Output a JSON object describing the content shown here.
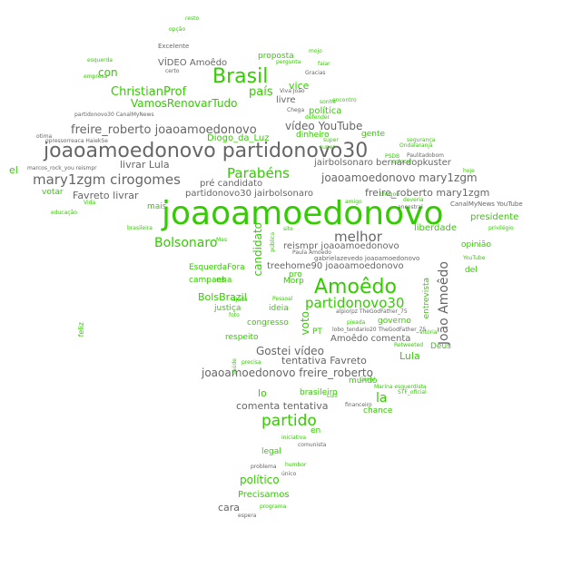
{
  "colors": {
    "green": "#33cc00",
    "gray": "#666666",
    "light_green": "#66dd33",
    "light_gray": "#999999"
  },
  "words": [
    "joaoamoedonovo",
    "joaoamoedonovo partidonovo30",
    "Brasil",
    "Amoêdo",
    "partido",
    "mary1zgm cirogomes",
    "freire_roberto joaoamoedonovo",
    "partidonovo30",
    "Parabéns",
    "melhor",
    "Bolsonaro",
    "João Amoêdo",
    "ChristianProf",
    "VamosRenovarTudo",
    "país",
    "vídeo YouTube",
    "joaoamoedonovo mary1zgm",
    "jairbolsonaro bernardopkuster",
    "freire_roberto mary1zgm",
    "joaoamoedonovo freire_roberto",
    "Gostei vídeo",
    "tentativa Favreto",
    "comenta tentativa",
    "reismpr joaoamoedonovo",
    "treehome90 joaoamoedonovo",
    "Amoêdo comenta",
    "livrar Lula",
    "Favreto livrar",
    "pré candidato",
    "partidonovo30 jairbolsonaro",
    "Diogo_da_Luz",
    "político",
    "Precisamos",
    "VÍDEO Amoêdo",
    "proposta",
    "con",
    "vice",
    "política",
    "livre",
    "dinheiro",
    "gente",
    "candidato",
    "voto",
    "presidente",
    "liberdade",
    "Lula",
    "la",
    "lo",
    "el",
    "mais",
    "EsquerdaFora",
    "BolsBrazil",
    "campanha",
    "justiça",
    "ideia",
    "congresso",
    "respeito",
    "governo",
    "brasileiro",
    "mundo",
    "chance",
    "legal",
    "cara",
    "entrevista",
    "Deus",
    "opinião",
    "votar",
    "Morp",
    "PT",
    "pro",
    "es",
    "en",
    "del",
    "feliz",
    "Excelente",
    "resto",
    "opção",
    "esquerda",
    "empresa",
    "certo",
    "otima",
    "educação",
    "saúde",
    "Vitória",
    "iniciativa",
    "humbor",
    "problema",
    "único",
    "espera",
    "programa",
    "marcos_rock_you reismpr",
    "partidonovo30 CanalMyNews",
    "opressorreaca HaiekSe",
    "Paulitadobom",
    "YouTube",
    "privilégio",
    "segurança",
    "Chega",
    "defender",
    "sonhe",
    "Pessoal",
    "foto",
    "pieada",
    "precisa",
    "alpiorpz TheGodFather_75",
    "Marina esquerdista",
    "STF_oficial",
    "lobo_tendario20 TheGodFather_75",
    "brasileira",
    "Gracias",
    "faiar",
    "pergunta",
    "mojo",
    "Viva João",
    "super",
    "encontro",
    "Ondalaranja",
    "PSDB",
    "colocar",
    "ajuda",
    "site",
    "pública",
    "Retweeted",
    "super",
    "ancestral",
    "Canal",
    "Mas",
    "amigo",
    "chegou",
    "deveria",
    "Paula Amoedo",
    "gabrielazevedo joaoamoedonovo",
    "CanalMyNews YouTube",
    "financeiro",
    "comunista",
    "Luiz",
    "Vida",
    "hoje"
  ]
}
